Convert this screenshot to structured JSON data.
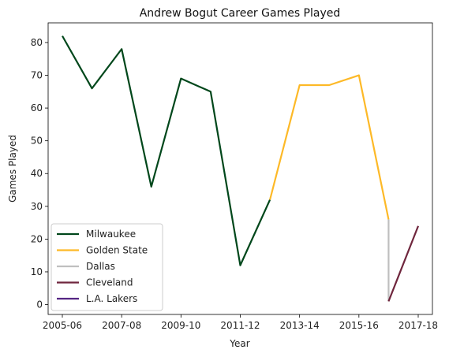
{
  "chart_data": {
    "type": "line",
    "title": "Andrew Bogut Career Games Played",
    "xlabel": "Year",
    "ylabel": "Games Played",
    "x_tick_labels": [
      "2005-06",
      "2007-08",
      "2009-10",
      "2011-12",
      "2013-14",
      "2015-16",
      "2017-18"
    ],
    "y_ticks": [
      0,
      10,
      20,
      30,
      40,
      50,
      60,
      70,
      80
    ],
    "ylim": [
      -3,
      86
    ],
    "grid": false,
    "legend_position": "bottom-left",
    "seasons": [
      "2005-06",
      "2006-07",
      "2007-08",
      "2008-09",
      "2009-10",
      "2010-11",
      "2011-12",
      "2012-13",
      "2013-14",
      "2014-15",
      "2015-16",
      "2016-17",
      "2017-18"
    ],
    "series": [
      {
        "name": "Milwaukee",
        "color": "#00471B",
        "points": [
          [
            "2005-06",
            82
          ],
          [
            "2006-07",
            66
          ],
          [
            "2007-08",
            78
          ],
          [
            "2008-09",
            36
          ],
          [
            "2009-10",
            69
          ],
          [
            "2010-11",
            65
          ],
          [
            "2011-12",
            12
          ],
          [
            "2012-13",
            32
          ]
        ]
      },
      {
        "name": "Golden State",
        "color": "#FDB927",
        "points": [
          [
            "2012-13",
            32
          ],
          [
            "2013-14",
            67
          ],
          [
            "2014-15",
            67
          ],
          [
            "2015-16",
            70
          ],
          [
            "2016-17",
            26
          ]
        ]
      },
      {
        "name": "Dallas",
        "color": "#BFBFBF",
        "points": [
          [
            "2016-17",
            26
          ],
          [
            "2016-17",
            1
          ]
        ]
      },
      {
        "name": "Cleveland",
        "color": "#6F263D",
        "points": [
          [
            "2016-17",
            1
          ],
          [
            "2017-18",
            24
          ]
        ]
      },
      {
        "name": "L.A. Lakers",
        "color": "#552583",
        "points": []
      }
    ]
  }
}
